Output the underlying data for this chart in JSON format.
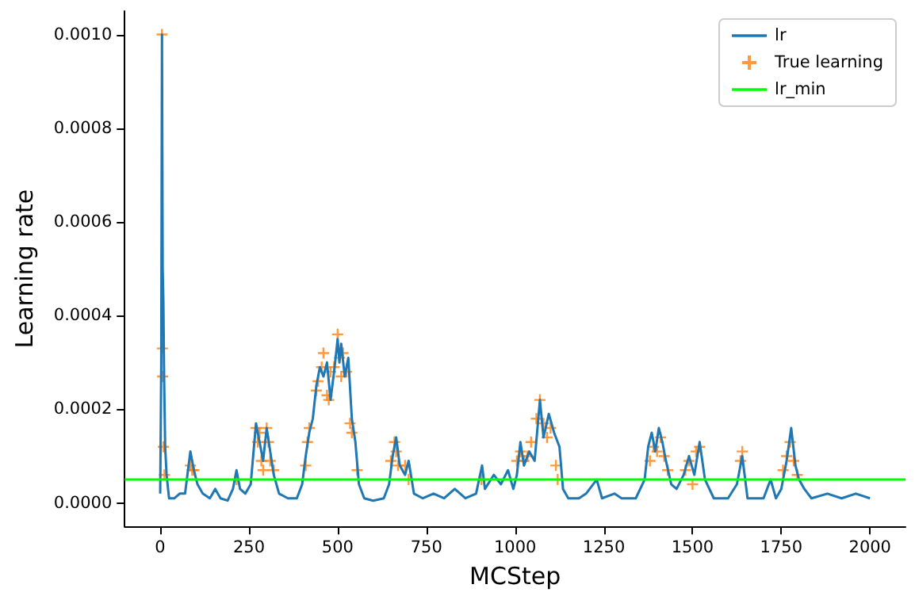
{
  "chart_data": {
    "type": "line",
    "xlabel": "MCStep",
    "ylabel": "Learning rate",
    "xlim": [
      -100,
      2100
    ],
    "ylim": [
      -5e-05,
      0.00105
    ],
    "xticks": [
      0,
      250,
      500,
      750,
      1000,
      1250,
      1500,
      1750,
      2000
    ],
    "yticks": [
      {
        "value": 0,
        "label": "0.0000"
      },
      {
        "value": 0.0002,
        "label": "0.0002"
      },
      {
        "value": 0.0004,
        "label": "0.0004"
      },
      {
        "value": 0.0006,
        "label": "0.0006"
      },
      {
        "value": 0.0008,
        "label": "0.0008"
      },
      {
        "value": 0.001,
        "label": "0.0010"
      }
    ],
    "grid": false,
    "legend": "top right",
    "series": [
      {
        "name": "lr",
        "color": "#1f77b4",
        "marker": "none",
        "x": [
          0,
          3,
          5,
          7,
          9,
          11,
          14,
          18,
          25,
          40,
          55,
          70,
          85,
          95,
          105,
          120,
          140,
          155,
          170,
          190,
          205,
          215,
          225,
          240,
          255,
          270,
          280,
          290,
          300,
          310,
          320,
          335,
          360,
          385,
          400,
          410,
          420,
          430,
          440,
          450,
          460,
          470,
          480,
          490,
          500,
          505,
          510,
          520,
          530,
          540,
          550,
          560,
          575,
          600,
          630,
          645,
          655,
          665,
          675,
          690,
          700,
          715,
          740,
          770,
          800,
          830,
          860,
          890,
          907,
          915,
          940,
          960,
          980,
          995,
          1005,
          1015,
          1025,
          1040,
          1055,
          1070,
          1080,
          1095,
          1110,
          1125,
          1135,
          1150,
          1180,
          1200,
          1230,
          1245,
          1280,
          1300,
          1340,
          1365,
          1375,
          1385,
          1395,
          1405,
          1415,
          1425,
          1440,
          1455,
          1475,
          1490,
          1505,
          1520,
          1535,
          1560,
          1600,
          1625,
          1640,
          1655,
          1700,
          1720,
          1735,
          1750,
          1765,
          1778,
          1790,
          1800,
          1815,
          1835,
          1880,
          1920,
          1960,
          2000
        ],
        "values": [
          2e-05,
          0.0003,
          0.001,
          0.0005,
          0.00043,
          0.00027,
          0.00012,
          6e-05,
          1e-05,
          1e-05,
          2e-05,
          2e-05,
          0.00011,
          7e-05,
          4e-05,
          2e-05,
          1e-05,
          3e-05,
          1e-05,
          5e-06,
          3e-05,
          7e-05,
          3e-05,
          2e-05,
          4e-05,
          0.00017,
          0.00013,
          9e-05,
          0.00016,
          0.00011,
          6e-05,
          2e-05,
          1e-05,
          1e-05,
          4e-05,
          0.0001,
          0.00015,
          0.00018,
          0.00025,
          0.00029,
          0.00027,
          0.0003,
          0.00022,
          0.00028,
          0.00035,
          0.0003,
          0.00034,
          0.00027,
          0.00031,
          0.00018,
          0.00013,
          4e-05,
          1e-05,
          5e-06,
          1e-05,
          4e-05,
          0.0001,
          0.00014,
          8e-05,
          6e-05,
          9e-05,
          2e-05,
          1e-05,
          2e-05,
          1e-05,
          3e-05,
          1e-05,
          2e-05,
          8e-05,
          3e-05,
          6e-05,
          4e-05,
          7e-05,
          3e-05,
          6e-05,
          0.00013,
          8e-05,
          0.00011,
          9e-05,
          0.00022,
          0.00014,
          0.00019,
          0.00015,
          0.00012,
          3e-05,
          1e-05,
          1e-05,
          2e-05,
          5e-05,
          1e-05,
          2e-05,
          1e-05,
          1e-05,
          5e-05,
          0.00012,
          0.00015,
          0.00011,
          0.00016,
          0.00013,
          9e-05,
          4e-05,
          3e-05,
          6e-05,
          0.0001,
          6e-05,
          0.00013,
          5e-05,
          1e-05,
          1e-05,
          4e-05,
          0.0001,
          1e-05,
          1e-05,
          5e-05,
          1e-05,
          3e-05,
          9e-05,
          0.00016,
          8e-05,
          5e-05,
          3e-05,
          1e-05,
          2e-05,
          1e-05,
          2e-05,
          1e-05
        ]
      },
      {
        "name": "True learning",
        "type": "scatter",
        "color": "#ff7f0e",
        "marker": "cross",
        "x": [
          5,
          6,
          7,
          9,
          12,
          85,
          90,
          95,
          215,
          270,
          275,
          280,
          285,
          290,
          300,
          305,
          310,
          320,
          410,
          415,
          420,
          440,
          445,
          455,
          460,
          470,
          475,
          480,
          490,
          500,
          505,
          510,
          515,
          525,
          535,
          540,
          555,
          650,
          660,
          665,
          670,
          690,
          700,
          905,
          1005,
          1015,
          1025,
          1035,
          1045,
          1060,
          1070,
          1080,
          1090,
          1100,
          1115,
          1120,
          1380,
          1390,
          1400,
          1410,
          1420,
          1430,
          1480,
          1490,
          1500,
          1510,
          1520,
          1635,
          1640,
          1755,
          1765,
          1775,
          1785,
          1795
        ],
        "values": [
          0.001,
          0.00033,
          0.00027,
          0.00012,
          6e-05,
          8e-05,
          7e-05,
          7e-05,
          5e-05,
          0.00016,
          0.00013,
          0.00015,
          9e-05,
          7e-05,
          0.00016,
          0.00013,
          9e-05,
          7e-05,
          8e-05,
          0.00013,
          0.00016,
          0.00024,
          0.00026,
          0.00029,
          0.00032,
          0.00023,
          0.00022,
          0.00028,
          0.00029,
          0.00036,
          0.00031,
          0.00027,
          0.00032,
          0.00028,
          0.00017,
          0.00015,
          7e-05,
          9e-05,
          0.00013,
          0.00011,
          8e-05,
          8e-05,
          5e-05,
          5e-05,
          9e-05,
          0.00011,
          9e-05,
          0.0001,
          0.00013,
          0.00018,
          0.00022,
          0.00017,
          0.00014,
          0.00016,
          8e-05,
          5e-05,
          9e-05,
          0.00012,
          0.00011,
          0.00014,
          0.0001,
          7e-05,
          7e-05,
          9e-05,
          4e-05,
          0.00011,
          0.00012,
          9e-05,
          0.00011,
          7e-05,
          0.0001,
          0.00013,
          9e-05,
          6e-05
        ]
      },
      {
        "name": "lr_min",
        "color": "#00ff00",
        "marker": "none",
        "x": [
          -100,
          2100
        ],
        "values": [
          5e-05,
          5e-05
        ]
      }
    ]
  }
}
